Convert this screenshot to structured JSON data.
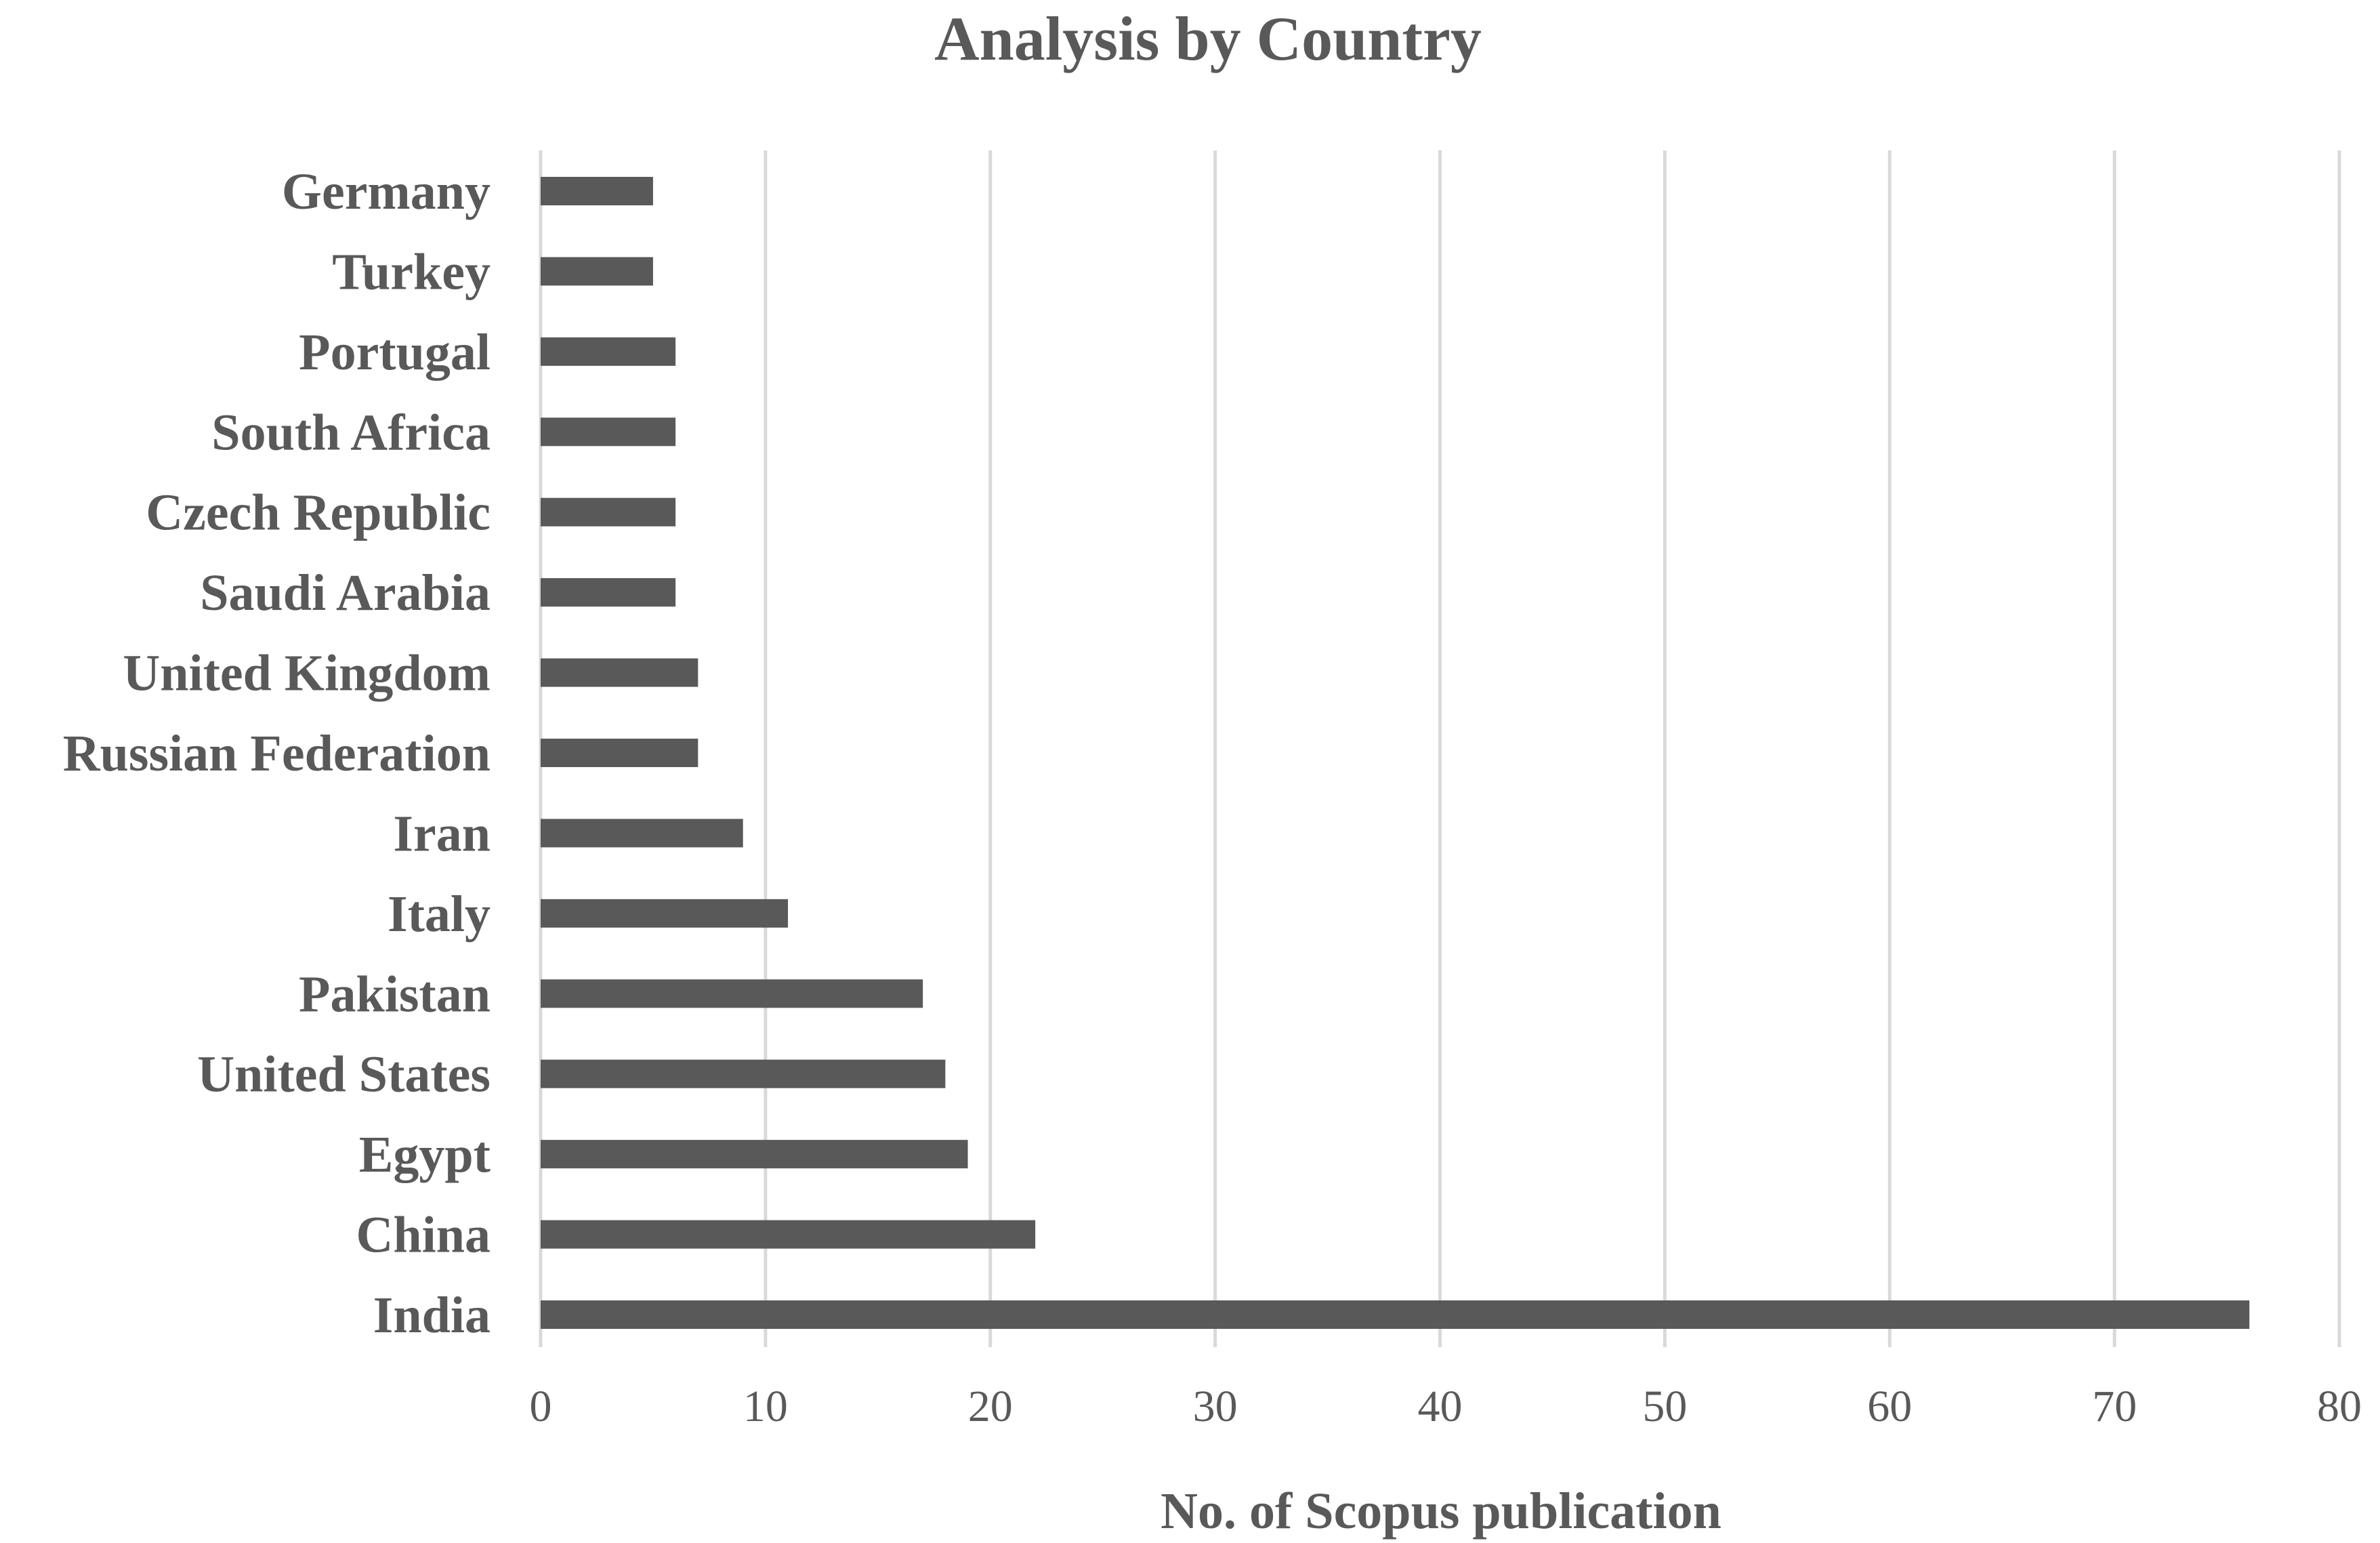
{
  "colors": {
    "bar": "#595959",
    "grid": "#d9d9d9",
    "text": "#595959",
    "background": "#ffffff"
  },
  "chart_data": {
    "type": "bar",
    "orientation": "horizontal",
    "title": "Analysis by Country",
    "xlabel": "No. of Scopus publication",
    "ylabel": "",
    "categories": [
      "Germany",
      "Turkey",
      "Portugal",
      "South Africa",
      "Czech Republic",
      "Saudi Arabia",
      "United Kingdom",
      "Russian Federation",
      "Iran",
      "Italy",
      "Pakistan",
      "United States",
      "Egypt",
      "China",
      "India"
    ],
    "values": [
      5,
      5,
      6,
      6,
      6,
      6,
      7,
      7,
      9,
      11,
      17,
      18,
      19,
      22,
      76
    ],
    "xlim": [
      0,
      80
    ],
    "xticks": [
      "0",
      "10",
      "20",
      "30",
      "40",
      "50",
      "60",
      "70",
      "80"
    ],
    "grid": "vertical",
    "legend": "none"
  }
}
